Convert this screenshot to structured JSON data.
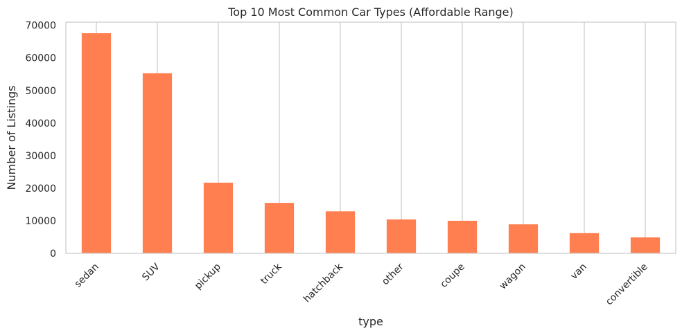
{
  "chart_data": {
    "type": "bar",
    "title": "Top 10 Most Common Car Types (Affordable Range)",
    "xlabel": "type",
    "ylabel": "Number of Listings",
    "categories": [
      "sedan",
      "SUV",
      "pickup",
      "truck",
      "hatchback",
      "other",
      "coupe",
      "wagon",
      "van",
      "convertible"
    ],
    "values": [
      67600,
      55300,
      21700,
      15500,
      12900,
      10400,
      10000,
      8900,
      6200,
      4900
    ],
    "ylim": [
      0,
      71000
    ],
    "yticks": [
      0,
      10000,
      20000,
      30000,
      40000,
      50000,
      60000,
      70000
    ],
    "grid": "vertical",
    "bar_color": "#ff7f50",
    "grid_color": "#cccccc",
    "text_color": "#262626"
  }
}
